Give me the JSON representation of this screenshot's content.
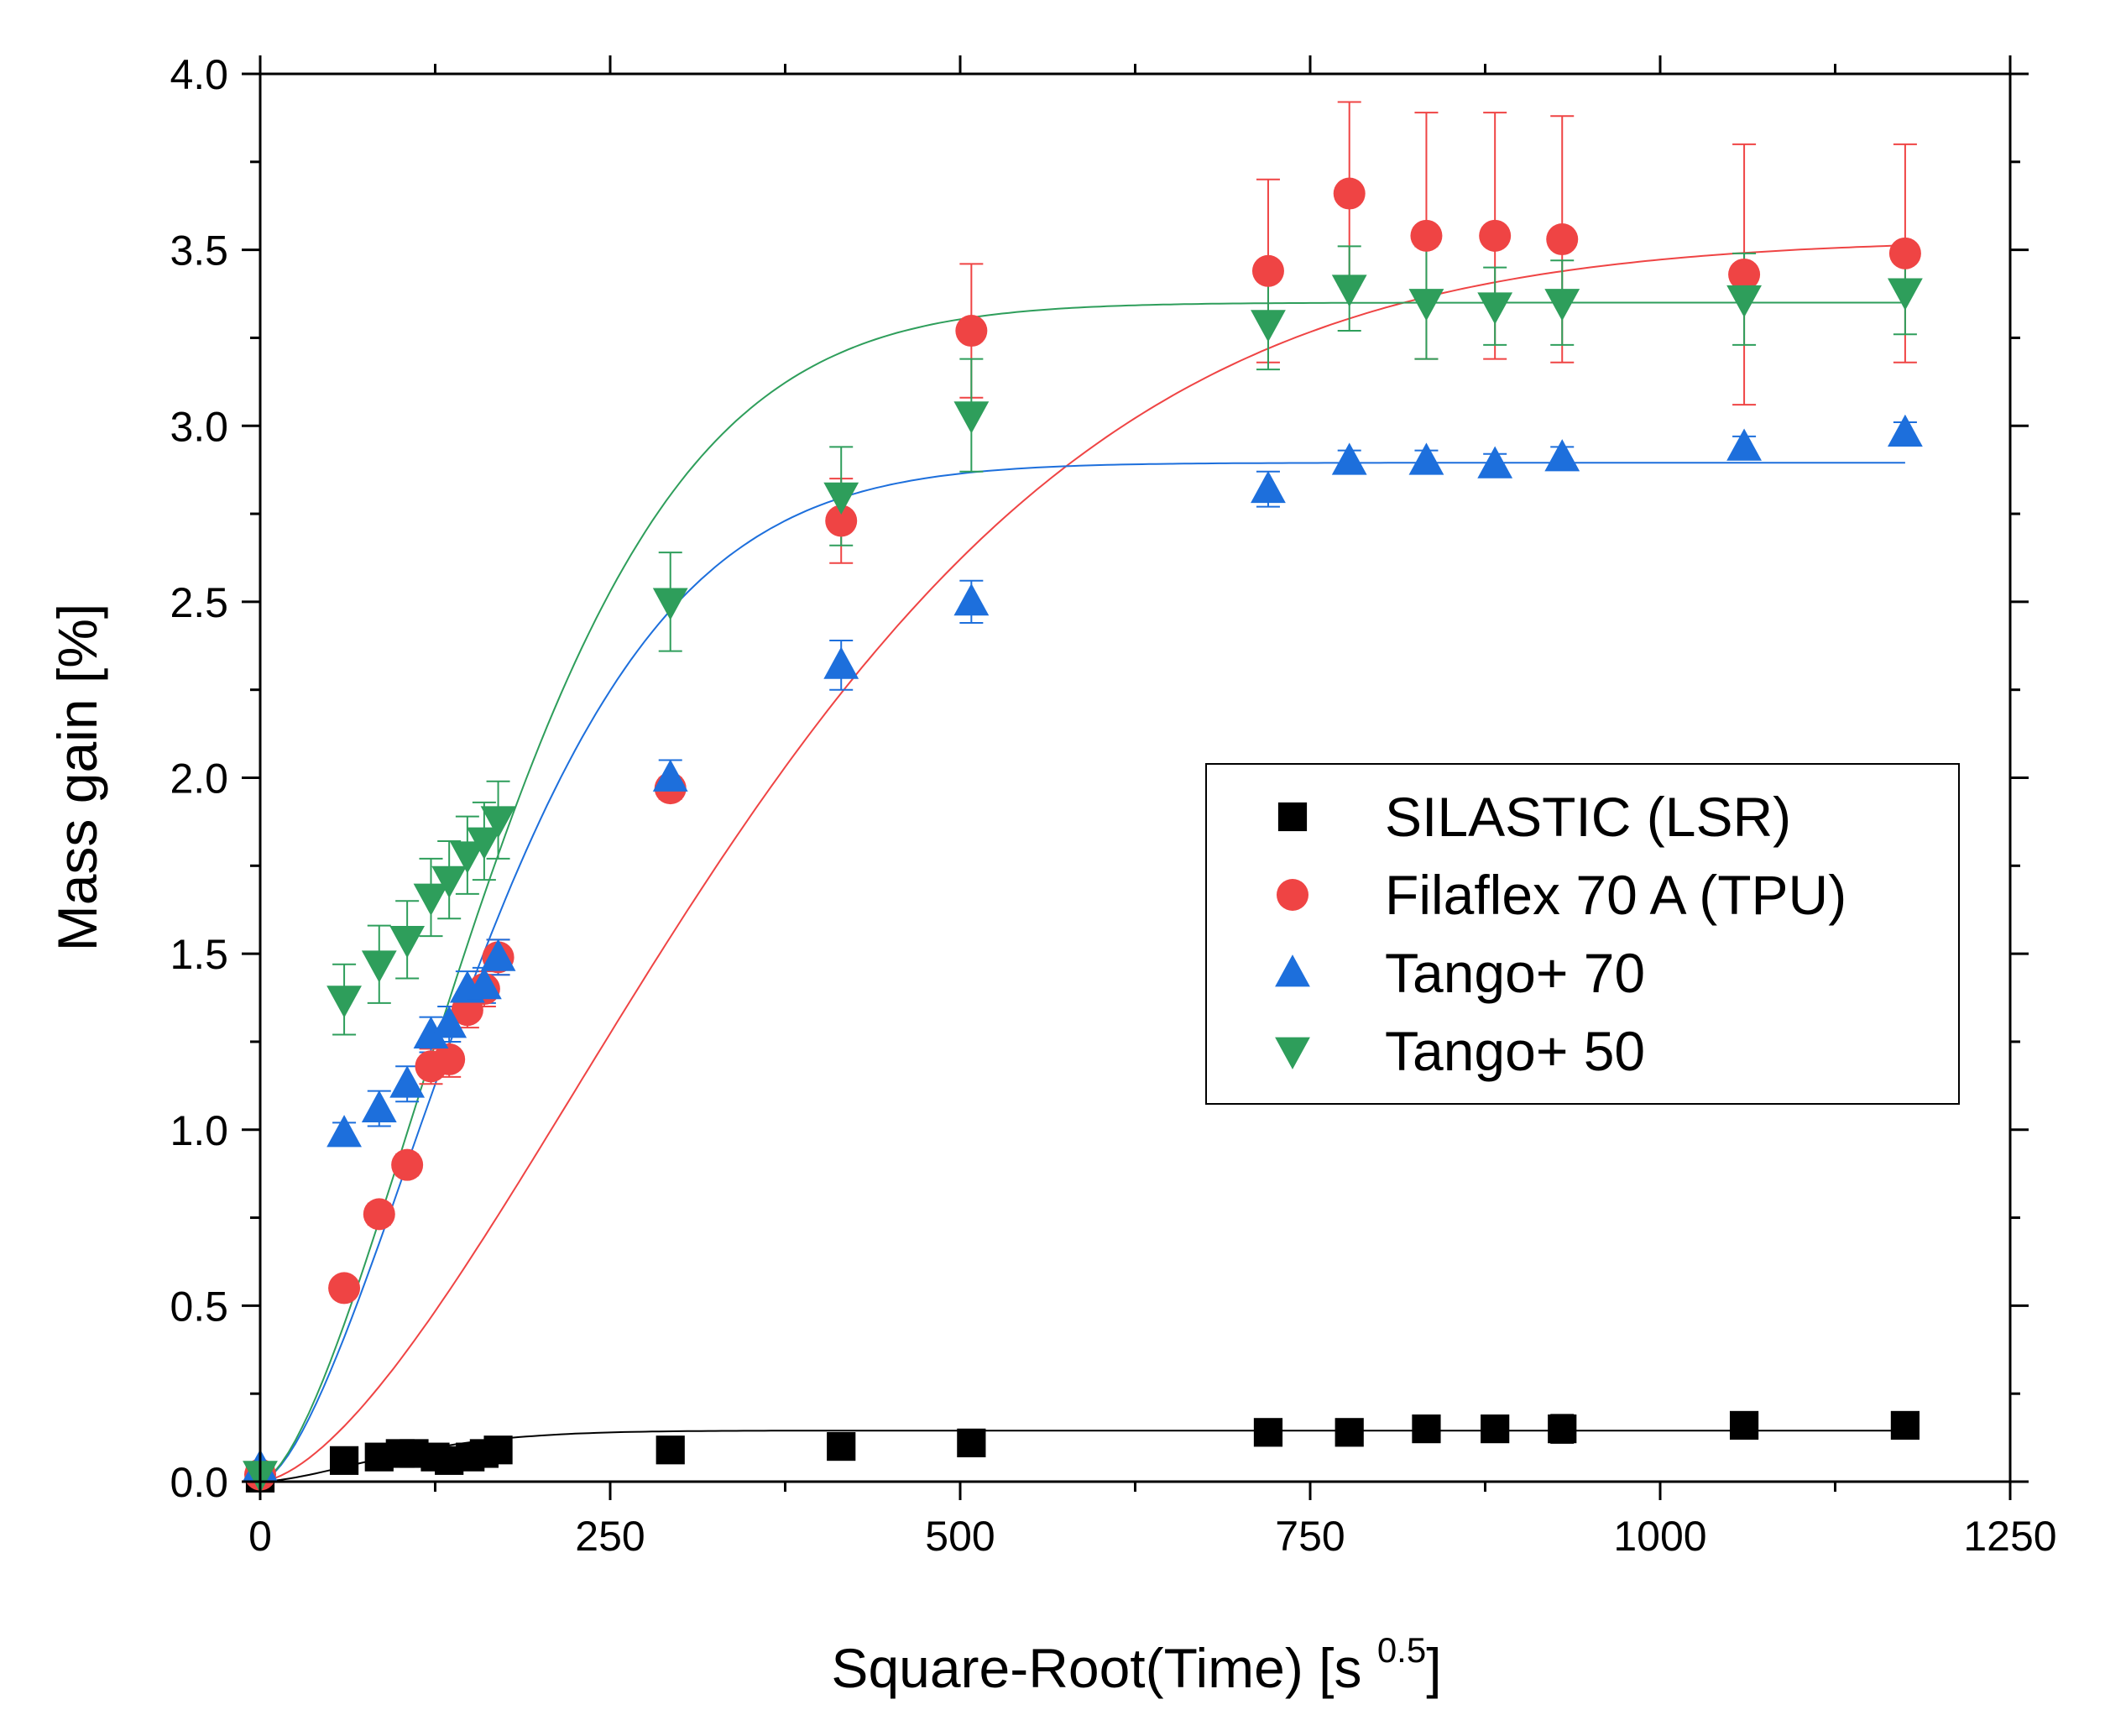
{
  "chart_data": {
    "type": "scatter",
    "title": "",
    "xlabel": "Square-Root(Time) [s ",
    "xlabel_superscript": "0.5",
    "xlabel_suffix": "]",
    "ylabel": "Mass gain [%]",
    "xlim": [
      0,
      1250
    ],
    "ylim": [
      0,
      4.0
    ],
    "xticks": [
      0,
      250,
      500,
      750,
      1000,
      1250
    ],
    "xtick_labels": [
      "0",
      "250",
      "500",
      "750",
      "1000",
      "1250"
    ],
    "yticks": [
      0,
      0.5,
      1.0,
      1.5,
      2.0,
      2.5,
      3.0,
      3.5,
      4.0
    ],
    "ytick_labels": [
      "0.0",
      "0.5",
      "1.0",
      "1.5",
      "2.0",
      "2.5",
      "3.0",
      "3.5",
      "4.0"
    ],
    "grid": false,
    "legend_position": "center-right",
    "series": [
      {
        "name": "SILASTIC (LSR)",
        "marker": "square",
        "color": "#000000",
        "x": [
          0,
          60,
          85,
          100,
          110,
          125,
          135,
          150,
          160,
          170,
          293,
          415,
          508,
          720,
          778,
          833,
          882,
          930,
          1060,
          1175
        ],
        "y": [
          0.01,
          0.06,
          0.07,
          0.08,
          0.08,
          0.07,
          0.06,
          0.07,
          0.08,
          0.09,
          0.09,
          0.1,
          0.11,
          0.14,
          0.14,
          0.15,
          0.15,
          0.15,
          0.16,
          0.16
        ],
        "err": [
          0.01,
          0.01,
          0.02,
          0.03,
          0.03,
          0.02,
          0.02,
          0.02,
          0.02,
          0.02,
          0.02,
          0.02,
          0.02,
          0.02,
          0.02,
          0.02,
          0.02,
          0.04,
          0.02,
          0.02
        ],
        "fit": {
          "plateau": 0.145,
          "k": 0.0085
        }
      },
      {
        "name": "Filaflex 70 A (TPU)",
        "marker": "circle",
        "color": "#ef4444",
        "x": [
          0,
          60,
          85,
          105,
          122,
          135,
          148,
          160,
          170,
          293,
          415,
          508,
          720,
          778,
          833,
          882,
          930,
          1060,
          1175
        ],
        "y": [
          0.02,
          0.55,
          0.76,
          0.9,
          1.18,
          1.2,
          1.34,
          1.4,
          1.49,
          1.97,
          2.73,
          3.27,
          3.44,
          3.66,
          3.54,
          3.54,
          3.53,
          3.43,
          3.49
        ],
        "err": [
          0.01,
          0.02,
          0.03,
          0.03,
          0.05,
          0.05,
          0.05,
          0.05,
          0.05,
          0.03,
          0.12,
          0.19,
          0.26,
          0.26,
          0.35,
          0.35,
          0.35,
          0.37,
          0.31
        ],
        "fit": {
          "plateau": 3.53,
          "k": 0.00242
        }
      },
      {
        "name": "Tango+ 70",
        "marker": "triangle-up",
        "color": "#1d6fdc",
        "x": [
          0,
          60,
          85,
          105,
          122,
          135,
          148,
          160,
          170,
          293,
          415,
          508,
          720,
          778,
          833,
          882,
          930,
          1060,
          1175
        ],
        "y": [
          0.04,
          0.99,
          1.06,
          1.13,
          1.27,
          1.3,
          1.4,
          1.41,
          1.49,
          2.0,
          2.32,
          2.5,
          2.82,
          2.9,
          2.9,
          2.89,
          2.91,
          2.94,
          2.98
        ],
        "err": [
          0.01,
          0.03,
          0.05,
          0.05,
          0.05,
          0.05,
          0.05,
          0.05,
          0.05,
          0.05,
          0.07,
          0.06,
          0.05,
          0.03,
          0.03,
          0.03,
          0.03,
          0.03,
          0.03
        ],
        "fit": {
          "plateau": 2.895,
          "k": 0.00515
        }
      },
      {
        "name": "Tango+ 50",
        "marker": "triangle-down",
        "color": "#2e9e5b",
        "x": [
          0,
          60,
          85,
          105,
          122,
          135,
          148,
          160,
          170,
          293,
          415,
          508,
          720,
          778,
          833,
          882,
          930,
          1060,
          1175
        ],
        "y": [
          0.02,
          1.37,
          1.47,
          1.54,
          1.66,
          1.71,
          1.78,
          1.82,
          1.88,
          2.5,
          2.8,
          3.03,
          3.29,
          3.39,
          3.35,
          3.34,
          3.35,
          3.36,
          3.38
        ],
        "err": [
          0.01,
          0.1,
          0.11,
          0.11,
          0.11,
          0.11,
          0.11,
          0.11,
          0.11,
          0.14,
          0.14,
          0.16,
          0.13,
          0.12,
          0.16,
          0.11,
          0.12,
          0.13,
          0.12
        ],
        "fit": {
          "plateau": 3.35,
          "k": 0.00495
        }
      }
    ]
  }
}
